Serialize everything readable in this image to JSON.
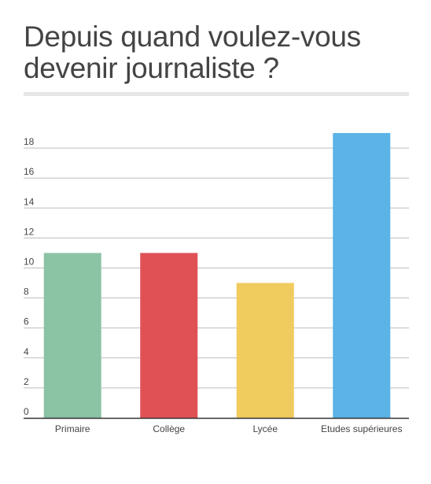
{
  "title": "Depuis quand voulez-vous devenir journaliste ?",
  "chart_data": {
    "type": "bar",
    "categories": [
      "Primaire",
      "Collège",
      "Lycée",
      "Etudes supérieures"
    ],
    "values": [
      11,
      11,
      9,
      19
    ],
    "colors": [
      "#8bc3a5",
      "#df5155",
      "#f0cb5e",
      "#5bb3e6"
    ],
    "yticks": [
      0,
      2,
      4,
      6,
      8,
      10,
      12,
      14,
      16,
      18
    ],
    "ylim": [
      0,
      19
    ],
    "grid": true,
    "title": "Depuis quand voulez-vous devenir journaliste ?",
    "xlabel": "",
    "ylabel": ""
  }
}
